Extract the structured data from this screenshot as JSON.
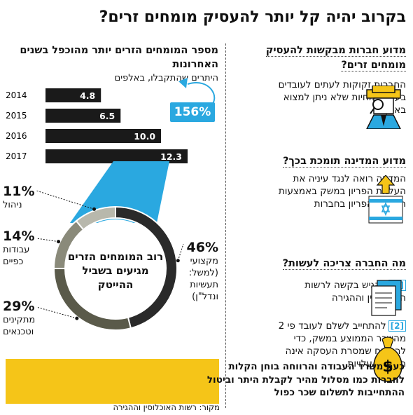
{
  "title": "בקרוב יהיה קל יותר להעסיק מומחים זרים?",
  "right": {
    "section1": {
      "heading": "מדוע חברות מבקשות להעסיק מומחים זרים?",
      "text": "החברות זקוקות לעתים לעובדים בעלי מומחיות שלא ניתן למצוא בארץ",
      "icon": "detective-icon"
    },
    "section2": {
      "heading": "מדוע המדינה תומכת בכך?",
      "text": "המדינה רואה לנגד עיניה את העלאת הפריון במשק באמצעות העלאת הפריון בחברות",
      "icon": "israel-flag-icon"
    },
    "section3": {
      "heading": "מה החברה צריכה לעשות?",
      "step1_num": "[1]",
      "step1": "להגיש בקשה לרשות האוכלוסין וההגירה",
      "step2_num": "[2]",
      "step2": "להתחייב לשלם לעובד פי 2 מהשכר הממוצע במשק, כדי להבטיח שמסרת העסקה אינה הפחתת עלויות",
      "icon1": "document-icon",
      "icon2": "money-bag-icon"
    }
  },
  "bars": {
    "title": "מספר המומחים הזרים יותר מהוכפל בשנים האחרונות",
    "subtitle": "היתרים שהתקבלו, באלפים",
    "growth": "156%"
  },
  "donut": {
    "center": "רוב המומחים הזרים מגיעים בשביל ההייטק"
  },
  "callout": "כעת משרד העבודה והרווחה בוחן הקלות לחברות כמו מסלול מהיר לקבלת היתר וביטול ההתחייבות לתשלום שכר כפול",
  "source": "מקור: רשות האוכלוסין וההגירה",
  "colors": {
    "accent": "#2aa8e0",
    "bar": "#1a1a1a",
    "yellow": "#f5c518"
  },
  "chart_data": [
    {
      "type": "bar",
      "orientation": "horizontal",
      "categories": [
        "2014",
        "2015",
        "2016",
        "2017"
      ],
      "values": [
        4.8,
        6.5,
        10.0,
        12.3
      ],
      "value_labels": [
        "4.8",
        "6.5",
        "10.0",
        "12.3"
      ],
      "title": "מספר המומחים הזרים יותר מהוכפל בשנים האחרונות",
      "subtitle": "היתרים שהתקבלו, באלפים",
      "xlim": [
        0,
        12.3
      ]
    },
    {
      "type": "pie",
      "donut": true,
      "title": "רוב המומחים הזרים מגיעים בשביל ההייטק",
      "slices": [
        {
          "label": "מקצועי (למשל: תעשיות ונדל\"ן)",
          "value": 46,
          "pct_label": "46%",
          "color": "#2a2a2a"
        },
        {
          "label": "מתקינים וטכנאים",
          "value": 29,
          "pct_label": "29%",
          "color": "#5a5a4a"
        },
        {
          "label": "עבודות כפיים",
          "value": 14,
          "pct_label": "14%",
          "color": "#8a8a7a"
        },
        {
          "label": "ניהול",
          "value": 11,
          "pct_label": "11%",
          "color": "#b8b8ac"
        }
      ]
    }
  ]
}
